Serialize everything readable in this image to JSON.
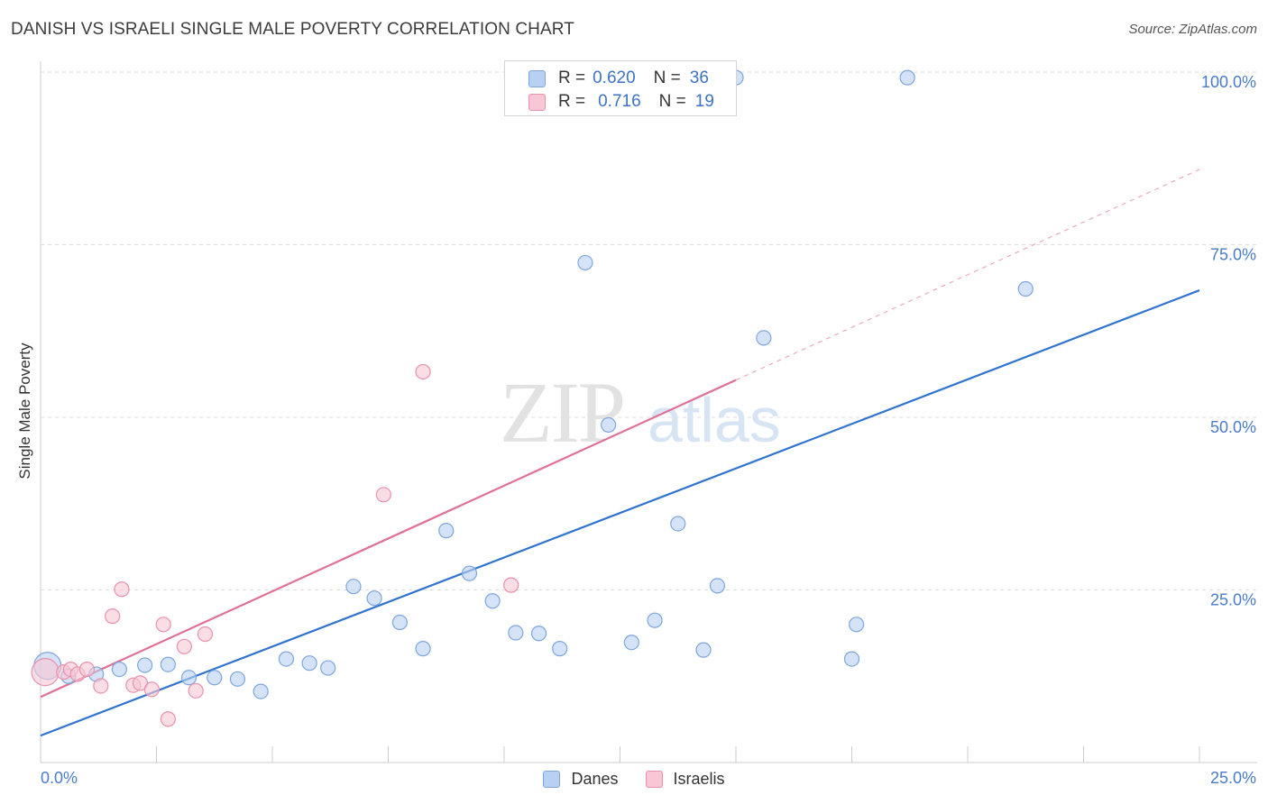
{
  "title": "DANISH VS ISRAELI SINGLE MALE POVERTY CORRELATION CHART",
  "source": "Source: ZipAtlas.com",
  "watermark": {
    "zip": "ZIP",
    "atlas": "atlas"
  },
  "legend": {
    "rows": [
      {
        "r_label": "R =",
        "r_value": "0.620",
        "n_label": "N =",
        "n_value": "36"
      },
      {
        "r_label": "R =",
        "r_value": "0.716",
        "n_label": "N =",
        "n_value": "19"
      }
    ]
  },
  "colors": {
    "danes_fill": "#b8d1f3",
    "danes_stroke": "#7ea6de",
    "danes_line": "#2f74d0",
    "israelis_fill": "#f8c6d4",
    "israelis_stroke": "#e991ac",
    "israelis_line": "#e07097",
    "tick_label": "#4a7cc9",
    "grid": "#dddddd"
  },
  "chart_data": {
    "type": "scatter",
    "title": "DANISH VS ISRAELI SINGLE MALE POVERTY CORRELATION CHART",
    "xlabel": "",
    "ylabel": "Single Male Poverty",
    "xlim": [
      0,
      25
    ],
    "ylim": [
      0,
      100
    ],
    "x_tick_labels": [
      "0.0%",
      "25.0%"
    ],
    "y_ticks": [
      25,
      50,
      75,
      100
    ],
    "y_tick_labels": [
      "25.0%",
      "50.0%",
      "75.0%",
      "100.0%"
    ],
    "grid": true,
    "legend_position": "bottom",
    "series": [
      {
        "name": "Danes",
        "r": 0.62,
        "n": 36,
        "trend": {
          "x0": 0,
          "y0": 3.9,
          "x1": 25,
          "y1": 68.4
        },
        "points": [
          {
            "x": 0.15,
            "y": 14.0,
            "size": "large"
          },
          {
            "x": 0.6,
            "y": 12.5
          },
          {
            "x": 1.2,
            "y": 12.8
          },
          {
            "x": 1.7,
            "y": 13.5
          },
          {
            "x": 2.25,
            "y": 14.1
          },
          {
            "x": 2.75,
            "y": 14.2
          },
          {
            "x": 3.2,
            "y": 12.3
          },
          {
            "x": 3.75,
            "y": 12.3
          },
          {
            "x": 4.25,
            "y": 12.1
          },
          {
            "x": 4.75,
            "y": 10.3
          },
          {
            "x": 5.3,
            "y": 15.0
          },
          {
            "x": 5.8,
            "y": 14.4
          },
          {
            "x": 6.2,
            "y": 13.7
          },
          {
            "x": 6.75,
            "y": 25.5
          },
          {
            "x": 7.2,
            "y": 23.8
          },
          {
            "x": 7.75,
            "y": 20.3
          },
          {
            "x": 8.25,
            "y": 16.5
          },
          {
            "x": 8.75,
            "y": 33.6
          },
          {
            "x": 9.25,
            "y": 27.4
          },
          {
            "x": 9.75,
            "y": 23.4
          },
          {
            "x": 10.25,
            "y": 18.8
          },
          {
            "x": 10.75,
            "y": 18.7
          },
          {
            "x": 11.2,
            "y": 16.5
          },
          {
            "x": 11.75,
            "y": 72.4
          },
          {
            "x": 12.25,
            "y": 48.9
          },
          {
            "x": 12.75,
            "y": 17.4
          },
          {
            "x": 13.25,
            "y": 20.6
          },
          {
            "x": 13.75,
            "y": 34.6
          },
          {
            "x": 14.3,
            "y": 16.3
          },
          {
            "x": 14.6,
            "y": 25.6
          },
          {
            "x": 15.0,
            "y": 99.2
          },
          {
            "x": 15.6,
            "y": 61.5
          },
          {
            "x": 17.5,
            "y": 15.0
          },
          {
            "x": 17.6,
            "y": 20.0
          },
          {
            "x": 18.7,
            "y": 99.2
          },
          {
            "x": 21.25,
            "y": 68.6
          }
        ]
      },
      {
        "name": "Israelis",
        "r": 0.716,
        "n": 19,
        "trend": {
          "x0": 0,
          "y0": 9.5,
          "x1": 15.0,
          "y1": 55.4
        },
        "trend_extension": {
          "x0": 15.0,
          "y0": 55.4,
          "x1": 25,
          "y1": 85.9
        },
        "points": [
          {
            "x": 0.1,
            "y": 13.1,
            "size": "large"
          },
          {
            "x": 0.5,
            "y": 13.1
          },
          {
            "x": 0.65,
            "y": 13.5
          },
          {
            "x": 0.8,
            "y": 12.8
          },
          {
            "x": 1.0,
            "y": 13.5
          },
          {
            "x": 1.3,
            "y": 11.1
          },
          {
            "x": 1.55,
            "y": 21.2
          },
          {
            "x": 1.75,
            "y": 25.1
          },
          {
            "x": 2.0,
            "y": 11.2
          },
          {
            "x": 2.15,
            "y": 11.5
          },
          {
            "x": 2.4,
            "y": 10.6
          },
          {
            "x": 2.65,
            "y": 20.0
          },
          {
            "x": 2.75,
            "y": 6.3
          },
          {
            "x": 3.1,
            "y": 16.8
          },
          {
            "x": 3.35,
            "y": 10.4
          },
          {
            "x": 3.55,
            "y": 18.6
          },
          {
            "x": 7.4,
            "y": 38.8
          },
          {
            "x": 8.25,
            "y": 56.6
          },
          {
            "x": 10.15,
            "y": 25.7
          }
        ]
      }
    ]
  }
}
